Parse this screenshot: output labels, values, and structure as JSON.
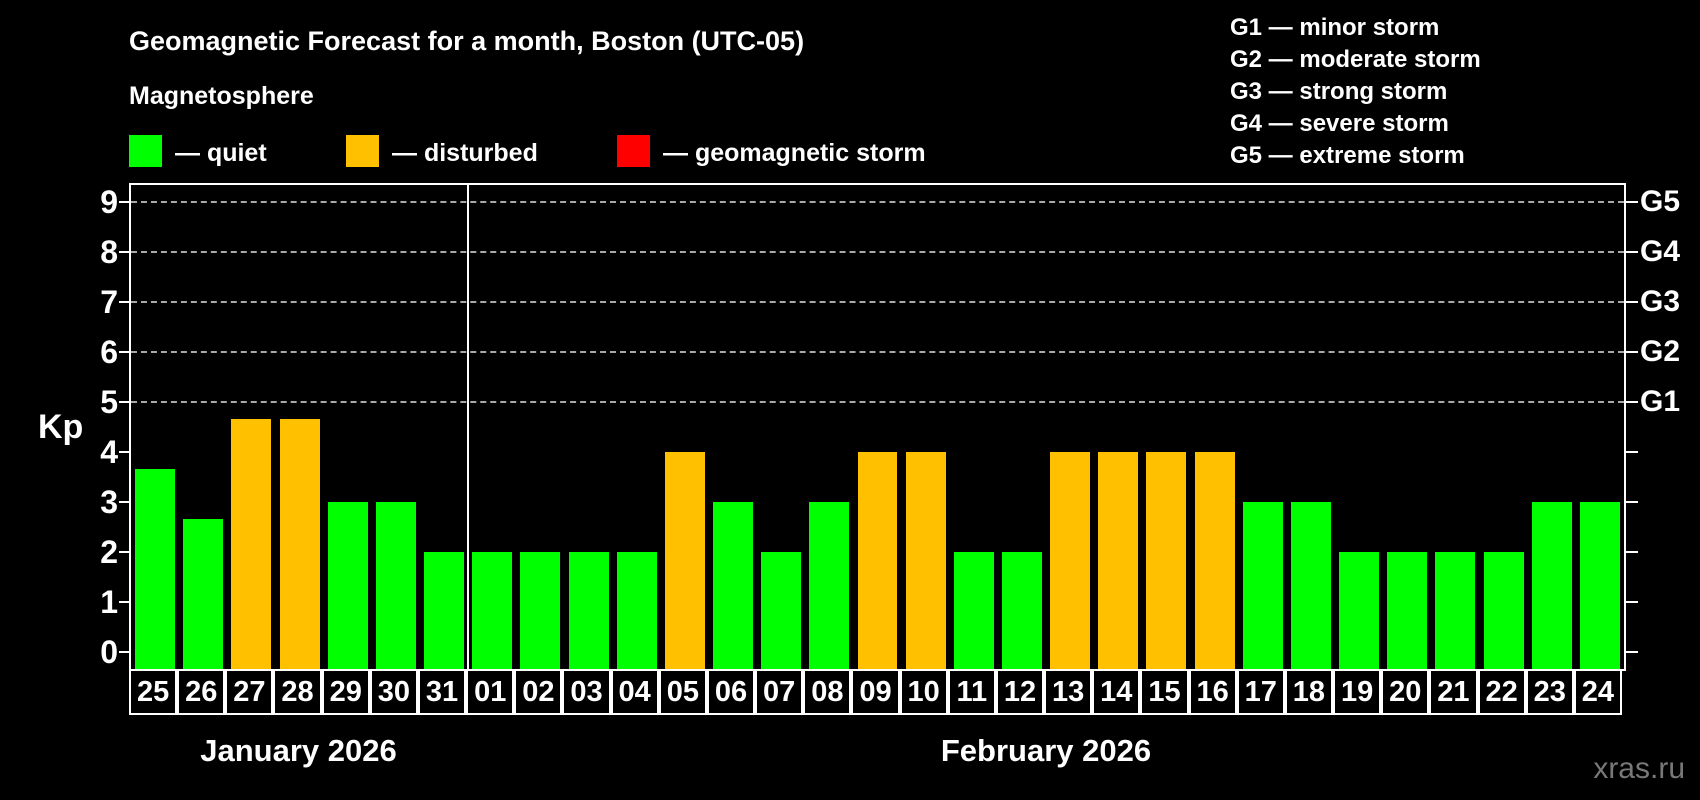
{
  "title": "Geomagnetic Forecast for a month, Boston (UTC-05)",
  "subtitle": "Magnetosphere",
  "watermark": "xras.ru",
  "colors": {
    "quiet": "#00ff00",
    "disturbed": "#ffc000",
    "storm": "#ff0000",
    "background": "#000000",
    "axis": "#ffffff",
    "gridline": "#a9a9a9",
    "watermark_gray": "#787878"
  },
  "legend": {
    "items": [
      {
        "key": "quiet",
        "label": "— quiet"
      },
      {
        "key": "disturbed",
        "label": "— disturbed"
      },
      {
        "key": "storm",
        "label": "— geomagnetic storm"
      }
    ]
  },
  "g_scale_legend": {
    "lines": [
      "G1 — minor storm",
      "G2 — moderate storm",
      "G3 — strong storm",
      "G4 — severe storm",
      "G5 — extreme storm"
    ]
  },
  "chart_data": {
    "type": "bar",
    "title": "Geomagnetic Forecast for a month, Boston (UTC-05)",
    "xlabel": "",
    "ylabel": "Kp",
    "ylim": [
      0,
      9
    ],
    "yticks": [
      0,
      1,
      2,
      3,
      4,
      5,
      6,
      7,
      8,
      9
    ],
    "gridlines_at_kp": [
      5,
      6,
      7,
      8,
      9
    ],
    "grid": "horizontal dashed lines at Kp 5 through 9 only",
    "legend_position": "top",
    "right_axis_labels": [
      {
        "label": "G5",
        "kp": 9
      },
      {
        "label": "G4",
        "kp": 8
      },
      {
        "label": "G3",
        "kp": 7
      },
      {
        "label": "G2",
        "kp": 6
      },
      {
        "label": "G1",
        "kp": 5
      }
    ],
    "months": [
      {
        "label": "January 2026",
        "days": [
          "25",
          "26",
          "27",
          "28",
          "29",
          "30",
          "31"
        ]
      },
      {
        "label": "February 2026",
        "days": [
          "01",
          "02",
          "03",
          "04",
          "05",
          "06",
          "07",
          "08",
          "09",
          "10",
          "11",
          "12",
          "13",
          "14",
          "15",
          "16",
          "17",
          "18",
          "19",
          "20",
          "21",
          "22",
          "23",
          "24"
        ]
      }
    ],
    "categories": [
      "25",
      "26",
      "27",
      "28",
      "29",
      "30",
      "31",
      "01",
      "02",
      "03",
      "04",
      "05",
      "06",
      "07",
      "08",
      "09",
      "10",
      "11",
      "12",
      "13",
      "14",
      "15",
      "16",
      "17",
      "18",
      "19",
      "20",
      "21",
      "22",
      "23",
      "24"
    ],
    "values": [
      3.67,
      2.67,
      4.67,
      4.67,
      3,
      3,
      2,
      2,
      2,
      2,
      2,
      4,
      3,
      2,
      3,
      4,
      4,
      2,
      2,
      4,
      4,
      4,
      4,
      3,
      3,
      2,
      2,
      2,
      2,
      3,
      3
    ],
    "statuses": [
      "quiet",
      "quiet",
      "disturbed",
      "disturbed",
      "quiet",
      "quiet",
      "quiet",
      "quiet",
      "quiet",
      "quiet",
      "quiet",
      "disturbed",
      "quiet",
      "quiet",
      "quiet",
      "disturbed",
      "disturbed",
      "quiet",
      "quiet",
      "disturbed",
      "disturbed",
      "disturbed",
      "disturbed",
      "quiet",
      "quiet",
      "quiet",
      "quiet",
      "quiet",
      "quiet",
      "quiet",
      "quiet"
    ]
  }
}
